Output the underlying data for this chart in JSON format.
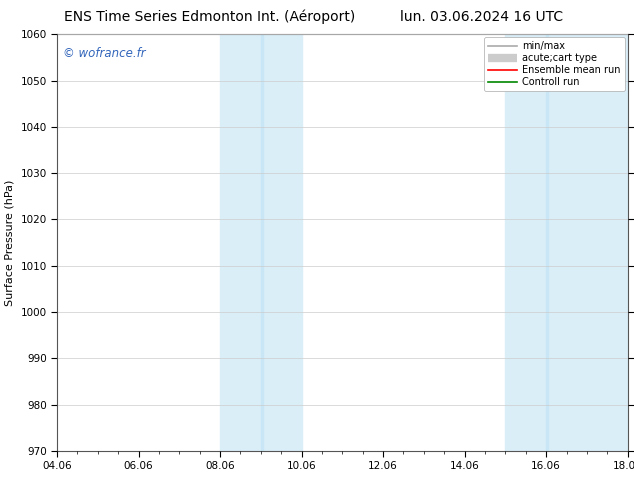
{
  "title_left": "ENS Time Series Edmonton Int. (Aéroport)",
  "title_right": "lun. 03.06.2024 16 UTC",
  "ylabel": "Surface Pressure (hPa)",
  "ylim": [
    970,
    1060
  ],
  "yticks": [
    970,
    980,
    990,
    1000,
    1010,
    1020,
    1030,
    1040,
    1050,
    1060
  ],
  "xlim_start": 0,
  "xlim_end": 14,
  "xtick_labels": [
    "04.06",
    "06.06",
    "08.06",
    "10.06",
    "12.06",
    "14.06",
    "16.06",
    "18.06"
  ],
  "xtick_positions": [
    0,
    2,
    4,
    6,
    8,
    10,
    12,
    14
  ],
  "shaded_bands": [
    {
      "xmin": 4.0,
      "xmax": 5.0,
      "color": "#daeef8"
    },
    {
      "xmin": 5.0,
      "xmax": 6.0,
      "color": "#daeef8"
    },
    {
      "xmin": 11.0,
      "xmax": 12.0,
      "color": "#daeef8"
    },
    {
      "xmin": 12.0,
      "xmax": 14.0,
      "color": "#daeef8"
    }
  ],
  "watermark": "© wofrance.fr",
  "watermark_color": "#3366bb",
  "bg_color": "#ffffff",
  "legend_entries": [
    {
      "label": "min/max",
      "color": "#aaaaaa",
      "lw": 1.2
    },
    {
      "label": "acute;cart type",
      "color": "#cccccc",
      "lw": 6
    },
    {
      "label": "Ensemble mean run",
      "color": "#ff0000",
      "lw": 1.2
    },
    {
      "label": "Controll run",
      "color": "#008800",
      "lw": 1.2
    }
  ],
  "grid_color": "#cccccc",
  "axis_label_fontsize": 8,
  "title_fontsize": 10,
  "tick_fontsize": 7.5
}
